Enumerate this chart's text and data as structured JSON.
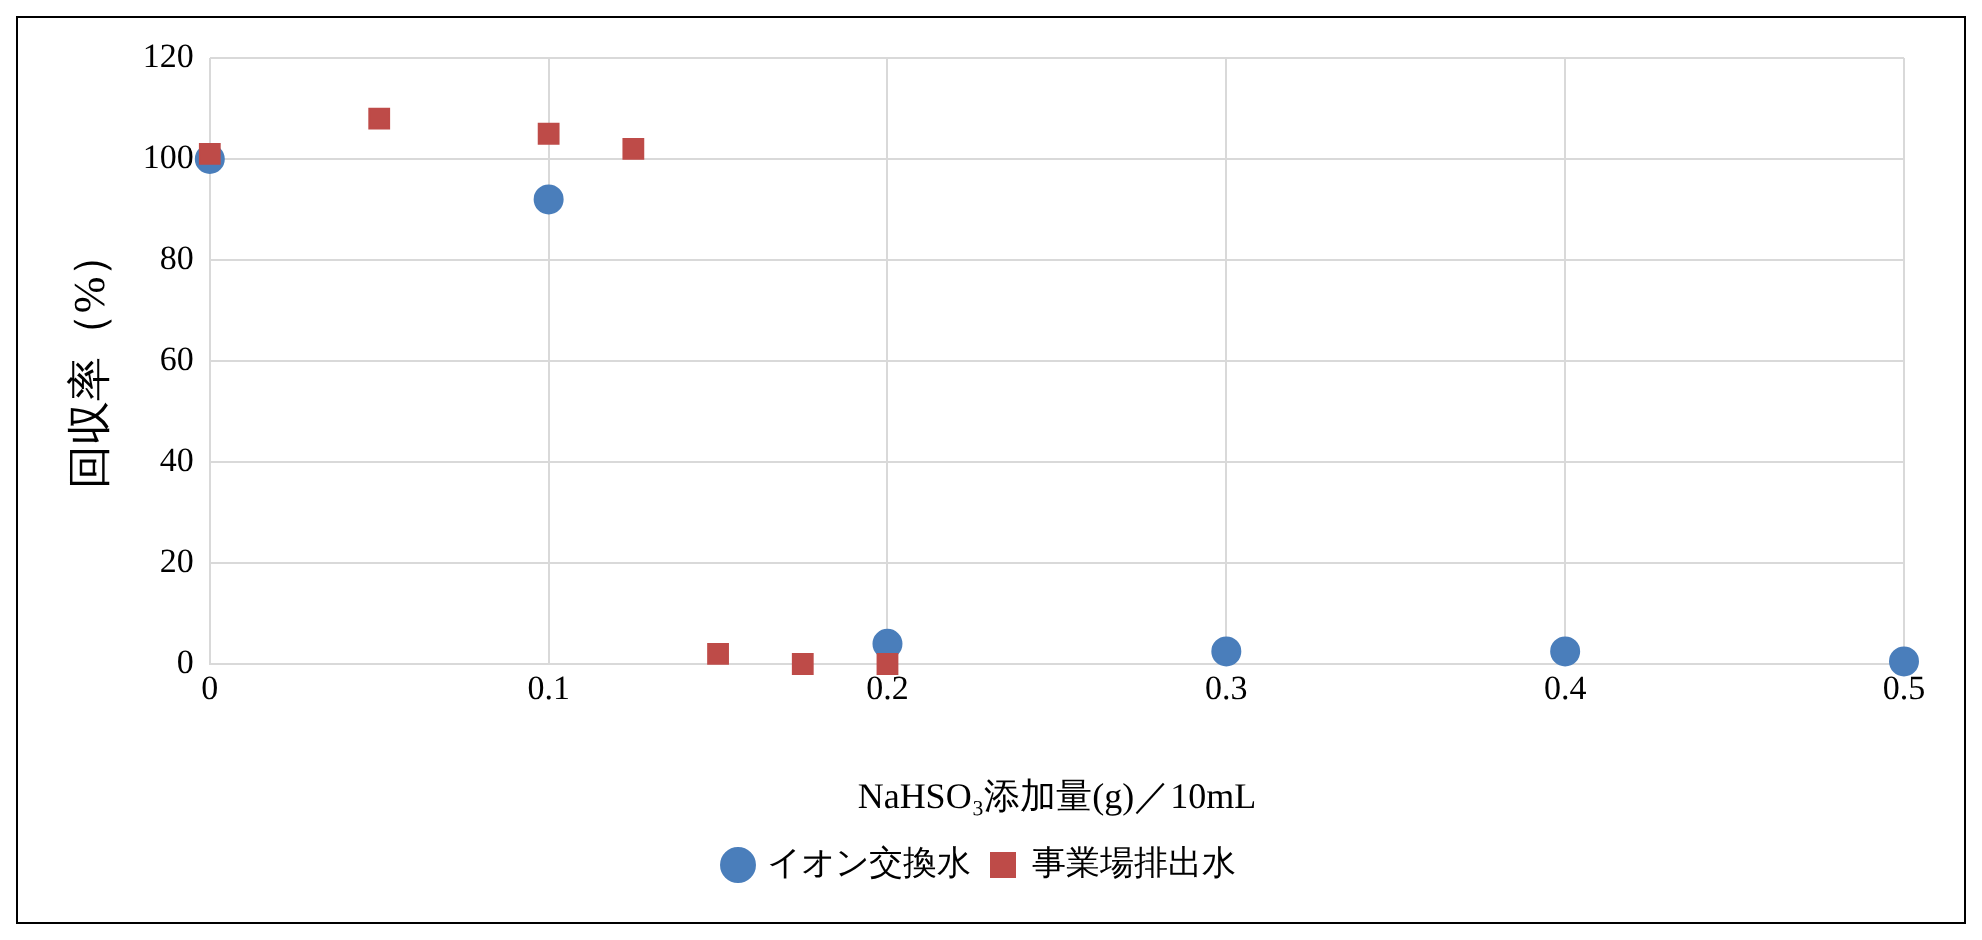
{
  "chart_data": {
    "type": "scatter",
    "xlabel": "NaHSO₃添加量(g)／10mL",
    "ylabel": "回収率（%）",
    "xlim": [
      0,
      0.5
    ],
    "xticks": [
      0,
      0.1,
      0.2,
      0.3,
      0.4,
      0.5
    ],
    "ylim": [
      0,
      120
    ],
    "yticks": [
      0,
      20,
      40,
      60,
      80,
      100,
      120
    ],
    "grid": true,
    "legend": "bottom",
    "series": [
      {
        "name": "イオン交換水",
        "color": "#4a7ebb",
        "marker": "circle",
        "x": [
          0,
          0.1,
          0.2,
          0.3,
          0.4,
          0.5
        ],
        "values": [
          100,
          92,
          4,
          2.5,
          2.5,
          0.5
        ]
      },
      {
        "name": "事業場排出水",
        "color": "#be4b48",
        "marker": "square",
        "x": [
          0,
          0.05,
          0.1,
          0.125,
          0.15,
          0.175,
          0.2
        ],
        "values": [
          101,
          108,
          105,
          102,
          2,
          0,
          0
        ]
      }
    ]
  }
}
